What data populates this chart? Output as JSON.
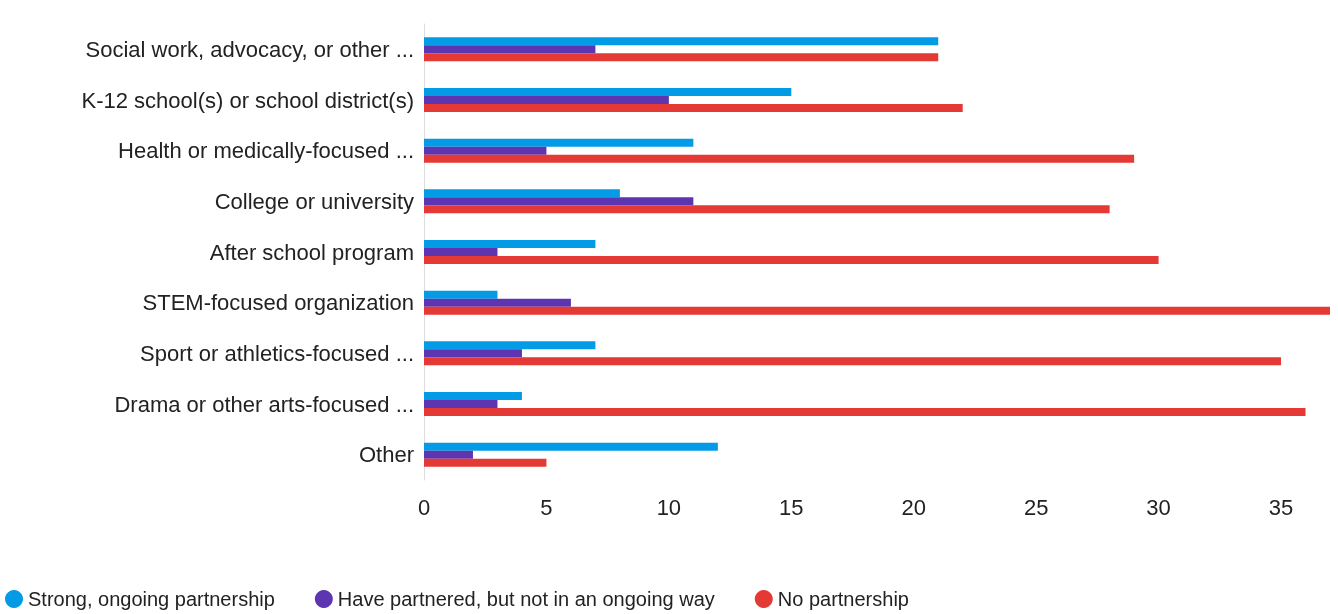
{
  "chart_data": {
    "type": "bar",
    "orientation": "horizontal",
    "categories": [
      "Social work, advocacy, or other ...",
      "K-12 school(s) or school district(s)",
      "Health or medically-focused ...",
      "College or university",
      "After school program",
      "STEM-focused organization",
      "Sport or athletics-focused ...",
      "Drama or other arts-focused ...",
      "Other"
    ],
    "series": [
      {
        "name": "Strong, ongoing partnership",
        "color": "#039be5",
        "values": [
          21,
          15,
          11,
          8,
          7,
          3,
          7,
          4,
          12
        ]
      },
      {
        "name": "Have partnered, but not in an ongoing way",
        "color": "#5e35b1",
        "values": [
          7,
          10,
          5,
          11,
          3,
          6,
          4,
          3,
          2
        ]
      },
      {
        "name": "No partnership",
        "color": "#e53935",
        "values": [
          21,
          22,
          29,
          28,
          30,
          37,
          35,
          36,
          5
        ]
      }
    ],
    "xlim": [
      0,
      37
    ],
    "xticks": [
      0,
      5,
      10,
      15,
      20,
      25,
      30,
      35
    ],
    "grid": false,
    "legend": "bottom left"
  }
}
